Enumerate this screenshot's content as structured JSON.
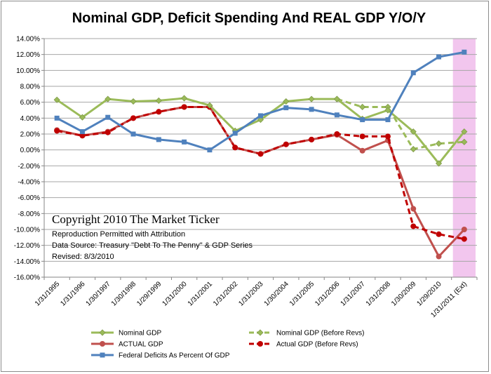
{
  "chart_data": {
    "type": "line",
    "title": "Nominal GDP, Deficit Spending And REAL GDP Y/O/Y",
    "categories": [
      "1/31/1995",
      "1/31/1996",
      "1/30/1997",
      "1/30/1998",
      "1/29/1999",
      "1/31/2000",
      "1/31/2001",
      "1/31/2002",
      "1/31/2003",
      "1/30/2004",
      "1/31/2005",
      "1/31/2006",
      "1/31/2007",
      "1/31/2008",
      "1/30/2009",
      "1/29/2010",
      "1/31/2011 (Ext)"
    ],
    "y_ticks": [
      "14.00%",
      "12.00%",
      "10.00%",
      "8.00%",
      "6.00%",
      "4.00%",
      "2.00%",
      "0.00%",
      "-2.00%",
      "-4.00%",
      "-6.00%",
      "-8.00%",
      "-10.00%",
      "-12.00%",
      "-14.00%",
      "-16.00%"
    ],
    "ylim": [
      -16,
      14
    ],
    "y_unit": "percent",
    "grid": "horizontal",
    "highlight_category": "1/31/2011 (Ext)",
    "highlight_color": "#f2c6ee",
    "series": [
      {
        "name": "Nominal GDP",
        "color": "#9bbb59",
        "style": "solid",
        "marker": "diamond",
        "values": [
          6.3,
          4.1,
          6.4,
          6.1,
          6.2,
          6.5,
          5.6,
          2.4,
          3.8,
          6.1,
          6.4,
          6.4,
          3.9,
          5.0,
          2.3,
          -1.7,
          2.3
        ]
      },
      {
        "name": "Nominal GDP (Before Revs)",
        "color": "#9bbb59",
        "style": "dashed",
        "marker": "diamond",
        "values": [
          null,
          null,
          null,
          null,
          null,
          null,
          null,
          null,
          null,
          null,
          null,
          6.4,
          5.4,
          5.4,
          0.1,
          0.8,
          1.0
        ]
      },
      {
        "name": "ACTUAL GDP",
        "color": "#c0504d",
        "style": "solid",
        "marker": "circle",
        "values": [
          2.5,
          1.8,
          2.3,
          4.0,
          4.8,
          5.4,
          5.4,
          0.3,
          -0.5,
          0.7,
          1.3,
          1.9,
          -0.1,
          1.2,
          -7.4,
          -13.4,
          -10.0
        ]
      },
      {
        "name": "Actual GDP (Before Revs)",
        "color": "#c00000",
        "style": "dashed",
        "marker": "circle",
        "values": [
          2.4,
          1.8,
          2.2,
          4.0,
          4.8,
          5.4,
          5.4,
          0.3,
          -0.5,
          0.7,
          1.3,
          2.0,
          1.7,
          1.7,
          -9.6,
          -10.6,
          -11.2
        ]
      },
      {
        "name": "Federal Deficits As Percent Of GDP",
        "color": "#4f81bd",
        "style": "solid",
        "marker": "square",
        "values": [
          4.0,
          2.3,
          4.1,
          2.0,
          1.3,
          1.0,
          0.0,
          2.1,
          4.3,
          5.3,
          5.1,
          4.4,
          3.8,
          3.8,
          9.7,
          11.7,
          12.3
        ]
      }
    ],
    "legend_position": "bottom"
  },
  "annotation": {
    "line1": "Copyright 2010 The Market Ticker",
    "line2": "Reproduction Permitted with Attribution",
    "line3": "Data Source:  Treasury \"Debt To The Penny\" & GDP Series",
    "line4": "Revised: 8/3/2010"
  }
}
